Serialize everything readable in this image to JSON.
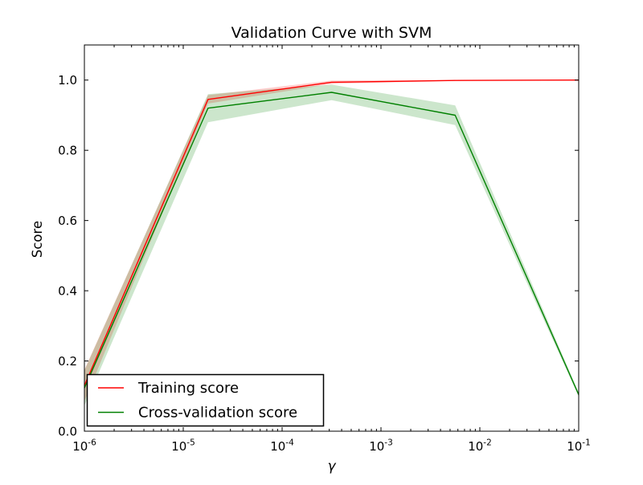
{
  "figure": {
    "background": "#ffffff"
  },
  "chart_data": {
    "type": "line",
    "title": "Validation Curve with SVM",
    "xlabel": "γ",
    "ylabel": "Score",
    "x_scale": "log",
    "xlim_log10": [
      -6,
      -1
    ],
    "ylim": [
      0.0,
      1.1
    ],
    "x": [
      1e-06,
      1.78e-05,
      0.000316,
      0.00562,
      0.1
    ],
    "x_log10": [
      -6,
      -4.75,
      -3.5,
      -2.25,
      -1
    ],
    "x_major_tick_exponents": [
      -6,
      -5,
      -4,
      -3,
      -2,
      -1
    ],
    "x_tick_base": "10",
    "y_ticks": [
      0.0,
      0.2,
      0.4,
      0.6,
      0.8,
      1.0
    ],
    "y_tick_labels": [
      "0.0",
      "0.2",
      "0.4",
      "0.6",
      "0.8",
      "1.0"
    ],
    "grid": false,
    "band_alpha": 0.2,
    "legend_position": "lower left",
    "series": [
      {
        "name": "Training score",
        "color": "#ff0000",
        "mean": [
          0.13,
          0.945,
          0.994,
          0.999,
          1.0
        ],
        "std": [
          0.045,
          0.012,
          0.005,
          0.001,
          0.001
        ]
      },
      {
        "name": "Cross-validation score",
        "color": "#008000",
        "mean": [
          0.123,
          0.92,
          0.965,
          0.9,
          0.104
        ],
        "std": [
          0.05,
          0.04,
          0.022,
          0.028,
          0.006
        ]
      }
    ]
  }
}
